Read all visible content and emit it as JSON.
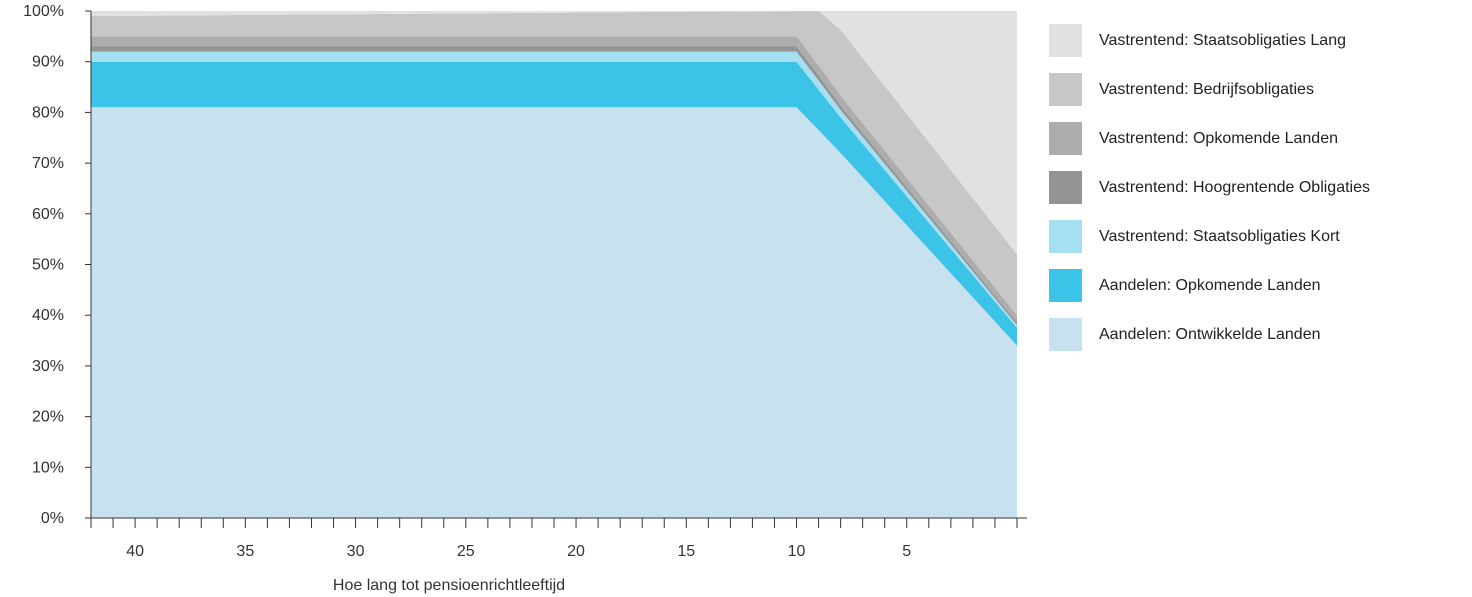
{
  "chart_data": {
    "type": "area",
    "stacked": true,
    "xlabel": "Hoe lang tot pensioenrichtleeftijd",
    "ylabel": "",
    "x_reversed": true,
    "xlim": [
      42,
      -0.5
    ],
    "ylim": [
      0,
      100
    ],
    "y_ticks": [
      0,
      10,
      20,
      30,
      40,
      50,
      60,
      70,
      80,
      90,
      100
    ],
    "y_tick_labels": [
      "0%",
      "10%",
      "20%",
      "30%",
      "40%",
      "50%",
      "60%",
      "70%",
      "80%",
      "90%",
      "100%"
    ],
    "x_ticks": [
      40,
      35,
      30,
      25,
      20,
      15,
      10,
      5
    ],
    "x_tick_labels": [
      "40",
      "35",
      "30",
      "25",
      "20",
      "15",
      "10",
      "5"
    ],
    "x": [
      42,
      10,
      9,
      8,
      0
    ],
    "series": [
      {
        "name": "Aandelen: Ontwikkelde Landen",
        "color": "#c8e1ef",
        "values": [
          81,
          81,
          76.5,
          72,
          34
        ]
      },
      {
        "name": "Aandelen: Opkomende Landen",
        "color": "#3cc3e8",
        "values": [
          9,
          9,
          8,
          7,
          3.5
        ]
      },
      {
        "name": "Vastrentend: Staatsobligaties Kort",
        "color": "#a7dff2",
        "values": [
          2,
          2,
          1.8,
          1.5,
          0.5
        ]
      },
      {
        "name": "Vastrentend: Hoogrentende Obligaties",
        "color": "#949494",
        "values": [
          1,
          1,
          1,
          0.8,
          0.5
        ]
      },
      {
        "name": "Vastrentend: Opkomende Landen",
        "color": "#adadad",
        "values": [
          2,
          2,
          2,
          2,
          1.5
        ]
      },
      {
        "name": "Vastrentend: Bedrijfsobligaties",
        "color": "#c7c7c7",
        "values": [
          4,
          5,
          10.7,
          13,
          12
        ]
      },
      {
        "name": "Vastrentend: Staatsobligaties Lang",
        "color": "#e0e1e3",
        "values": [
          1,
          0,
          0,
          3.7,
          48
        ]
      }
    ],
    "legend_position": "right",
    "legend_order": [
      "Vastrentend: Staatsobligaties Lang",
      "Vastrentend: Bedrijfsobligaties",
      "Vastrentend: Opkomende Landen",
      "Vastrentend: Hoogrentende Obligaties",
      "Vastrentend: Staatsobligaties Kort",
      "Aandelen: Opkomende Landen",
      "Aandelen: Ontwikkelde Landen"
    ],
    "grid": false
  }
}
